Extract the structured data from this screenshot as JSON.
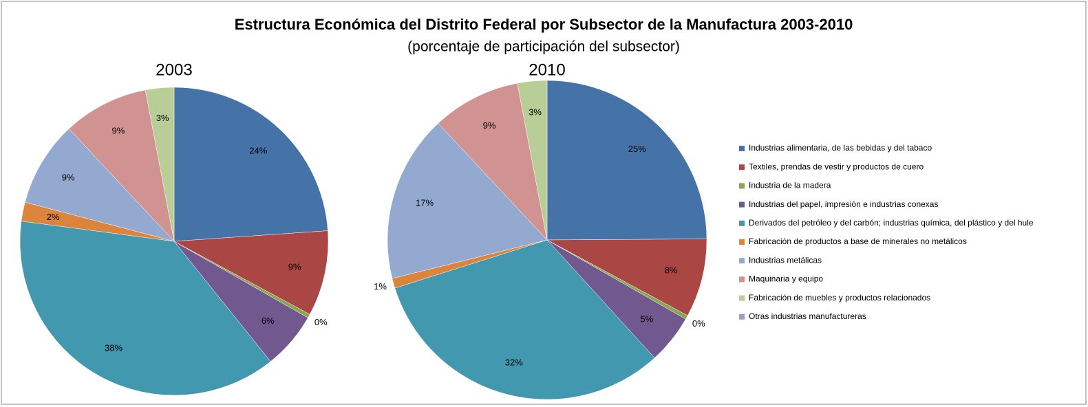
{
  "title": "Estructura Económica del Distrito Federal por Subsector de la Manufactura 2003-2010",
  "subtitle": "(porcentaje de participación del subsector)",
  "legend": {
    "position": "right",
    "categories": [
      "Industrias alimentaria,  de las bebidas y del tabaco",
      "Textiles, prendas de vestir y productos de cuero",
      "Industria de la madera",
      "Industrias del papel, impresión e industrias  conexas",
      "Derivados del petróleo y del carbón; industrias química, del plástico y del hule",
      "Fabricación de productos a base de minerales no metálicos",
      "Industrias metálicas",
      "Maquinaria y equipo",
      "Fabricación de muebles y productos relacionados",
      "Otras industrias manufactureras"
    ],
    "colors": [
      "#4572A7",
      "#AA4643",
      "#89A54E",
      "#71588F",
      "#4198AF",
      "#DB843D",
      "#93A9CF",
      "#D19392",
      "#B9CD96",
      "#A99BBD"
    ]
  },
  "chart_data": [
    {
      "type": "pie",
      "title": "2003",
      "values": [
        24,
        9,
        0.4,
        6,
        38,
        2,
        9,
        9,
        3,
        0
      ],
      "value_labels": [
        "24%",
        "9%",
        "0%",
        "6%",
        "38%",
        "2%",
        "9%",
        "9%",
        "3%",
        null
      ]
    },
    {
      "type": "pie",
      "title": "2010",
      "values": [
        25,
        8,
        0.4,
        5,
        32,
        1,
        17,
        9,
        3,
        0
      ],
      "value_labels": [
        "25%",
        "8%",
        "0%",
        "5%",
        "32%",
        "1%",
        "17%",
        "9%",
        "3%",
        null
      ]
    }
  ]
}
